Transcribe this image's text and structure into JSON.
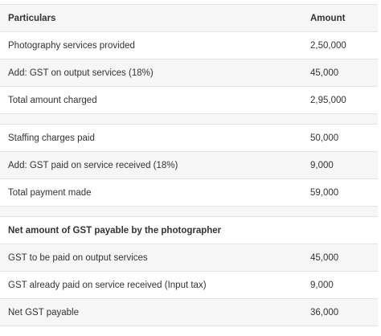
{
  "table": {
    "header": [
      "Particulars",
      "Amount"
    ],
    "sections": [
      {
        "rows": [
          [
            "Photography services provided",
            "2,50,000"
          ],
          [
            "Add: GST on output services (18%)",
            "45,000"
          ],
          [
            "Total amount charged",
            "2,95,000"
          ]
        ]
      },
      {
        "rows": [
          [
            "Staffing charges paid",
            "50,000"
          ],
          [
            "Add: GST paid on service received (18%)",
            "9,000"
          ],
          [
            "Total payment made",
            "59,000"
          ]
        ]
      },
      {
        "heading": "Net amount of GST payable by the photographer",
        "rows": [
          [
            "GST to be paid on output services",
            "45,000"
          ],
          [
            "GST already paid on service received (Input tax)",
            "9,000"
          ],
          [
            "Net GST payable",
            "36,000"
          ]
        ]
      }
    ]
  }
}
